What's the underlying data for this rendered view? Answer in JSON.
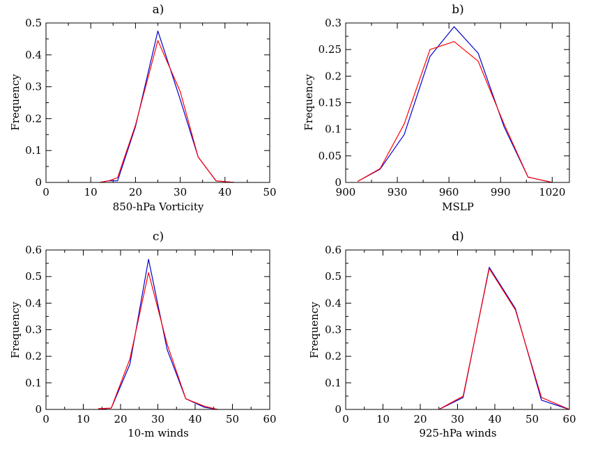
{
  "chart_data": [
    {
      "type": "line",
      "title": "a)",
      "xlabel": "850-hPa Vorticity",
      "ylabel": "Frequency",
      "xlim": [
        0,
        50
      ],
      "ylim": [
        0,
        0.5
      ],
      "xticks": [
        0,
        10,
        20,
        30,
        40,
        50
      ],
      "yticks": [
        0,
        0.1,
        0.2,
        0.3,
        0.4,
        0.5
      ],
      "series": [
        {
          "color": "#0000cc",
          "x": [
            12,
            14,
            16,
            20,
            25,
            30,
            34,
            38,
            42
          ],
          "y": [
            0,
            0.005,
            0.005,
            0.175,
            0.475,
            0.26,
            0.08,
            0.005,
            0
          ]
        },
        {
          "color": "#ff0000",
          "x": [
            12,
            14,
            16,
            20,
            25,
            30,
            34,
            38,
            42
          ],
          "y": [
            0,
            0.005,
            0.015,
            0.18,
            0.445,
            0.285,
            0.08,
            0.005,
            0
          ]
        }
      ]
    },
    {
      "type": "line",
      "title": "b)",
      "xlabel": "MSLP",
      "ylabel": "Frequency",
      "xlim": [
        900,
        1030
      ],
      "ylim": [
        0,
        0.3
      ],
      "xticks": [
        900,
        930,
        960,
        990,
        1020
      ],
      "yticks": [
        0,
        0.05,
        0.1,
        0.15,
        0.2,
        0.25,
        0.3
      ],
      "series": [
        {
          "color": "#0000cc",
          "x": [
            907,
            920,
            934,
            949,
            963,
            977,
            992,
            1006,
            1020
          ],
          "y": [
            0.002,
            0.025,
            0.09,
            0.237,
            0.293,
            0.243,
            0.105,
            0.01,
            0
          ]
        },
        {
          "color": "#ff0000",
          "x": [
            907,
            920,
            934,
            949,
            963,
            977,
            992,
            1006,
            1020
          ],
          "y": [
            0.002,
            0.026,
            0.11,
            0.25,
            0.265,
            0.228,
            0.11,
            0.01,
            0
          ]
        }
      ]
    },
    {
      "type": "line",
      "title": "c)",
      "xlabel": "10-m winds",
      "ylabel": "Frequency",
      "xlim": [
        0,
        60
      ],
      "ylim": [
        0,
        0.6
      ],
      "xticks": [
        0,
        10,
        20,
        30,
        40,
        50,
        60
      ],
      "yticks": [
        0,
        0.1,
        0.2,
        0.3,
        0.4,
        0.5,
        0.6
      ],
      "series": [
        {
          "color": "#0000cc",
          "x": [
            14,
            17.5,
            22.5,
            27.5,
            32.5,
            37.5,
            42.5,
            46
          ],
          "y": [
            0,
            0.005,
            0.17,
            0.565,
            0.225,
            0.04,
            0.008,
            0
          ]
        },
        {
          "color": "#ff0000",
          "x": [
            14,
            17.5,
            22.5,
            27.5,
            32.5,
            37.5,
            42.5,
            46
          ],
          "y": [
            0.003,
            0.005,
            0.19,
            0.515,
            0.245,
            0.04,
            0.012,
            0
          ]
        }
      ]
    },
    {
      "type": "line",
      "title": "d)",
      "xlabel": "925-hPa winds",
      "ylabel": "Frequency",
      "xlim": [
        0,
        60
      ],
      "ylim": [
        0,
        0.6
      ],
      "xticks": [
        0,
        10,
        20,
        30,
        40,
        50,
        60
      ],
      "yticks": [
        0,
        0.1,
        0.2,
        0.3,
        0.4,
        0.5,
        0.6
      ],
      "series": [
        {
          "color": "#0000cc",
          "x": [
            25,
            31.5,
            38.5,
            45.5,
            52.5,
            60
          ],
          "y": [
            0,
            0.045,
            0.535,
            0.38,
            0.035,
            0
          ]
        },
        {
          "color": "#ff0000",
          "x": [
            25,
            31.5,
            38.5,
            45.5,
            52.5,
            60
          ],
          "y": [
            0,
            0.05,
            0.53,
            0.375,
            0.045,
            0
          ]
        }
      ]
    }
  ]
}
